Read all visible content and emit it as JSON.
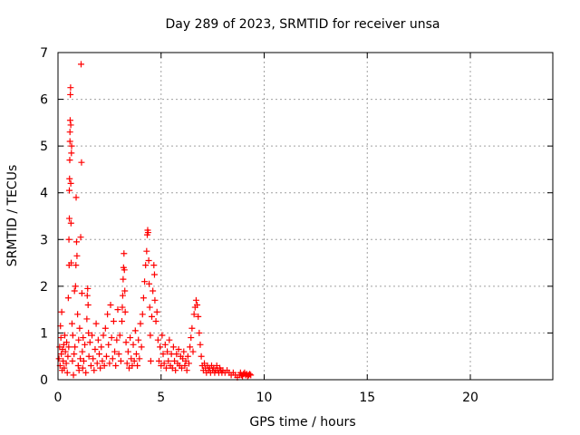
{
  "chart_data": {
    "type": "scatter",
    "title": "Day 289 of 2023, SRMTID for receiver unsa",
    "xlabel": "GPS time / hours",
    "ylabel": "SRMTID / TECUs",
    "xlim": [
      0,
      24
    ],
    "ylim": [
      0,
      7
    ],
    "xticks": [
      0,
      5,
      10,
      15,
      20
    ],
    "yticks": [
      0,
      1,
      2,
      3,
      4,
      5,
      6,
      7
    ],
    "xtick_labels": [
      "0",
      "5",
      "10",
      "15",
      "20"
    ],
    "ytick_labels": [
      "0",
      "1",
      "2",
      "3",
      "4",
      "5",
      "6",
      "7"
    ],
    "grid": true,
    "marker": "+",
    "series": [
      {
        "name": "SRMTID",
        "color": "#ff0000",
        "points": [
          [
            0.05,
            0.45
          ],
          [
            0.08,
            0.7
          ],
          [
            0.1,
            0.3
          ],
          [
            0.12,
            1.15
          ],
          [
            0.14,
            0.9
          ],
          [
            0.16,
            0.55
          ],
          [
            0.18,
            1.45
          ],
          [
            0.2,
            0.2
          ],
          [
            0.22,
            0.65
          ],
          [
            0.25,
            0.4
          ],
          [
            0.28,
            0.75
          ],
          [
            0.3,
            0.25
          ],
          [
            0.33,
            0.95
          ],
          [
            0.36,
            0.6
          ],
          [
            0.4,
            0.35
          ],
          [
            0.42,
            0.8
          ],
          [
            0.45,
            0.15
          ],
          [
            0.48,
            0.5
          ],
          [
            0.5,
            1.75
          ],
          [
            0.52,
            0.7
          ],
          [
            0.53,
            3.0
          ],
          [
            0.54,
            2.45
          ],
          [
            0.55,
            3.45
          ],
          [
            0.55,
            4.05
          ],
          [
            0.56,
            4.3
          ],
          [
            0.57,
            4.7
          ],
          [
            0.58,
            5.1
          ],
          [
            0.58,
            5.3
          ],
          [
            0.59,
            5.55
          ],
          [
            0.6,
            6.1
          ],
          [
            0.61,
            6.25
          ],
          [
            0.62,
            5.45
          ],
          [
            0.62,
            4.2
          ],
          [
            0.63,
            3.35
          ],
          [
            0.64,
            2.5
          ],
          [
            0.65,
            4.85
          ],
          [
            0.66,
            5.0
          ],
          [
            0.68,
            1.2
          ],
          [
            0.7,
            0.4
          ],
          [
            0.72,
            0.95
          ],
          [
            0.75,
            0.1
          ],
          [
            0.78,
            0.55
          ],
          [
            0.8,
            1.9
          ],
          [
            0.82,
            0.7
          ],
          [
            0.85,
            2.0
          ],
          [
            0.87,
            2.45
          ],
          [
            0.88,
            3.9
          ],
          [
            0.9,
            2.95
          ],
          [
            0.92,
            2.65
          ],
          [
            0.95,
            1.4
          ],
          [
            0.98,
            0.3
          ],
          [
            1.0,
            0.85
          ],
          [
            1.02,
            0.2
          ],
          [
            1.05,
            1.1
          ],
          [
            1.08,
            0.45
          ],
          [
            1.1,
            3.05
          ],
          [
            1.12,
            6.75
          ],
          [
            1.14,
            4.65
          ],
          [
            1.16,
            1.85
          ],
          [
            1.18,
            0.6
          ],
          [
            1.2,
            0.25
          ],
          [
            1.22,
            0.9
          ],
          [
            1.25,
            0.4
          ],
          [
            1.3,
            0.75
          ],
          [
            1.35,
            0.15
          ],
          [
            1.4,
            1.3
          ],
          [
            1.42,
            1.8
          ],
          [
            1.44,
            1.95
          ],
          [
            1.46,
            1.6
          ],
          [
            1.48,
            1.0
          ],
          [
            1.5,
            0.5
          ],
          [
            1.55,
            0.8
          ],
          [
            1.6,
            0.3
          ],
          [
            1.65,
            0.95
          ],
          [
            1.7,
            0.45
          ],
          [
            1.75,
            0.2
          ],
          [
            1.8,
            0.65
          ],
          [
            1.85,
            1.2
          ],
          [
            1.9,
            0.35
          ],
          [
            1.95,
            0.85
          ],
          [
            2.0,
            0.55
          ],
          [
            2.05,
            0.25
          ],
          [
            2.1,
            0.7
          ],
          [
            2.15,
            0.4
          ],
          [
            2.2,
            0.95
          ],
          [
            2.25,
            0.3
          ],
          [
            2.3,
            1.1
          ],
          [
            2.35,
            0.5
          ],
          [
            2.4,
            1.4
          ],
          [
            2.45,
            0.75
          ],
          [
            2.5,
            0.35
          ],
          [
            2.55,
            1.6
          ],
          [
            2.6,
            0.9
          ],
          [
            2.65,
            0.45
          ],
          [
            2.7,
            1.25
          ],
          [
            2.75,
            0.6
          ],
          [
            2.8,
            0.3
          ],
          [
            2.85,
            0.85
          ],
          [
            2.9,
            1.5
          ],
          [
            2.95,
            0.55
          ],
          [
            3.0,
            0.95
          ],
          [
            3.05,
            0.4
          ],
          [
            3.1,
            1.25
          ],
          [
            3.12,
            1.55
          ],
          [
            3.14,
            1.8
          ],
          [
            3.16,
            2.15
          ],
          [
            3.18,
            2.4
          ],
          [
            3.2,
            2.7
          ],
          [
            3.22,
            2.35
          ],
          [
            3.24,
            1.9
          ],
          [
            3.26,
            1.45
          ],
          [
            3.3,
            0.8
          ],
          [
            3.35,
            0.35
          ],
          [
            3.4,
            0.6
          ],
          [
            3.45,
            0.25
          ],
          [
            3.5,
            0.9
          ],
          [
            3.55,
            0.45
          ],
          [
            3.6,
            0.3
          ],
          [
            3.65,
            0.75
          ],
          [
            3.7,
            0.4
          ],
          [
            3.75,
            1.05
          ],
          [
            3.8,
            0.55
          ],
          [
            3.85,
            0.3
          ],
          [
            3.9,
            0.85
          ],
          [
            3.95,
            0.45
          ],
          [
            4.0,
            1.2
          ],
          [
            4.05,
            0.7
          ],
          [
            4.1,
            1.4
          ],
          [
            4.15,
            1.75
          ],
          [
            4.2,
            2.1
          ],
          [
            4.25,
            2.45
          ],
          [
            4.3,
            2.75
          ],
          [
            4.33,
            3.1
          ],
          [
            4.35,
            3.2
          ],
          [
            4.37,
            3.15
          ],
          [
            4.4,
            2.55
          ],
          [
            4.42,
            2.05
          ],
          [
            4.45,
            1.55
          ],
          [
            4.48,
            0.95
          ],
          [
            4.5,
            0.4
          ],
          [
            4.55,
            1.35
          ],
          [
            4.6,
            1.9
          ],
          [
            4.65,
            2.45
          ],
          [
            4.68,
            2.25
          ],
          [
            4.7,
            1.7
          ],
          [
            4.75,
            1.25
          ],
          [
            4.8,
            1.45
          ],
          [
            4.85,
            0.85
          ],
          [
            4.9,
            0.4
          ],
          [
            4.95,
            0.7
          ],
          [
            5.0,
            0.3
          ],
          [
            5.05,
            0.95
          ],
          [
            5.1,
            0.55
          ],
          [
            5.15,
            0.35
          ],
          [
            5.2,
            0.75
          ],
          [
            5.25,
            0.25
          ],
          [
            5.3,
            0.6
          ],
          [
            5.35,
            0.4
          ],
          [
            5.4,
            0.85
          ],
          [
            5.45,
            0.3
          ],
          [
            5.5,
            0.55
          ],
          [
            5.55,
            0.25
          ],
          [
            5.6,
            0.7
          ],
          [
            5.65,
            0.4
          ],
          [
            5.7,
            0.2
          ],
          [
            5.75,
            0.55
          ],
          [
            5.8,
            0.35
          ],
          [
            5.85,
            0.65
          ],
          [
            5.9,
            0.3
          ],
          [
            5.95,
            0.5
          ],
          [
            6.0,
            0.25
          ],
          [
            6.05,
            0.45
          ],
          [
            6.1,
            0.6
          ],
          [
            6.15,
            0.3
          ],
          [
            6.2,
            0.4
          ],
          [
            6.25,
            0.2
          ],
          [
            6.3,
            0.5
          ],
          [
            6.35,
            0.35
          ],
          [
            6.4,
            0.7
          ],
          [
            6.45,
            0.9
          ],
          [
            6.5,
            1.1
          ],
          [
            6.55,
            0.6
          ],
          [
            6.6,
            1.4
          ],
          [
            6.65,
            1.55
          ],
          [
            6.7,
            1.7
          ],
          [
            6.75,
            1.6
          ],
          [
            6.8,
            1.35
          ],
          [
            6.85,
            1.0
          ],
          [
            6.9,
            0.75
          ],
          [
            6.95,
            0.5
          ],
          [
            7.0,
            0.3
          ],
          [
            7.05,
            0.2
          ],
          [
            7.1,
            0.35
          ],
          [
            7.15,
            0.25
          ],
          [
            7.2,
            0.15
          ],
          [
            7.25,
            0.3
          ],
          [
            7.3,
            0.2
          ],
          [
            7.35,
            0.25
          ],
          [
            7.4,
            0.15
          ],
          [
            7.45,
            0.3
          ],
          [
            7.5,
            0.2
          ],
          [
            7.55,
            0.25
          ],
          [
            7.6,
            0.15
          ],
          [
            7.65,
            0.2
          ],
          [
            7.7,
            0.3
          ],
          [
            7.75,
            0.2
          ],
          [
            7.8,
            0.15
          ],
          [
            7.85,
            0.25
          ],
          [
            7.9,
            0.2
          ],
          [
            7.95,
            0.15
          ],
          [
            8.0,
            0.2
          ],
          [
            8.1,
            0.15
          ],
          [
            8.2,
            0.2
          ],
          [
            8.3,
            0.15
          ],
          [
            8.4,
            0.1
          ],
          [
            8.5,
            0.15
          ],
          [
            8.6,
            0.1
          ],
          [
            8.7,
            0.05
          ],
          [
            8.8,
            0.1
          ],
          [
            8.85,
            0.15
          ],
          [
            8.9,
            0.1
          ],
          [
            8.95,
            0.08
          ],
          [
            9.0,
            0.12
          ],
          [
            9.05,
            0.15
          ],
          [
            9.1,
            0.1
          ],
          [
            9.15,
            0.12
          ],
          [
            9.2,
            0.08
          ],
          [
            9.25,
            0.1
          ],
          [
            9.3,
            0.12
          ],
          [
            9.35,
            0.1
          ]
        ]
      }
    ]
  }
}
